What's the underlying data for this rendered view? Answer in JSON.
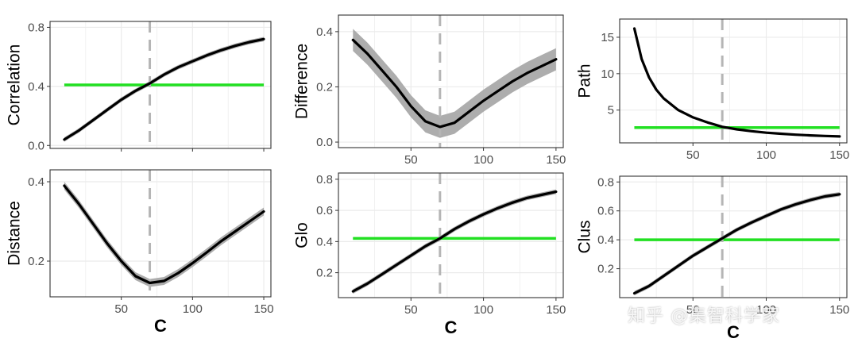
{
  "watermark": "知乎 @集智科学家",
  "colors": {
    "curve": "#000000",
    "band": "#a9a9a9",
    "reference": "#22e022",
    "cutoff": "#b5b5b5",
    "grid": "#ebebeb",
    "border": "#333333"
  },
  "chart_data": [
    {
      "type": "line",
      "ylabel": "Correlation",
      "xlabel": "",
      "xlim": [
        0,
        155
      ],
      "ylim": [
        -0.02,
        0.84
      ],
      "xticks": [],
      "xgrid": [
        50,
        100,
        150
      ],
      "yticks": [
        {
          "value": 0.0,
          "label": "0.0"
        },
        {
          "value": 0.4,
          "label": "0.4"
        },
        {
          "value": 0.8,
          "label": "0.8"
        }
      ],
      "x": [
        10,
        20,
        30,
        40,
        50,
        60,
        70,
        80,
        90,
        100,
        110,
        120,
        130,
        140,
        150
      ],
      "y": [
        0.04,
        0.1,
        0.17,
        0.24,
        0.31,
        0.37,
        0.42,
        0.48,
        0.53,
        0.57,
        0.61,
        0.645,
        0.675,
        0.7,
        0.72
      ],
      "band": 0.015,
      "reference_y": 0.41,
      "cutoff_x": 70
    },
    {
      "type": "line",
      "ylabel": "Difference",
      "xlabel": "",
      "xlim": [
        0,
        155
      ],
      "ylim": [
        -0.02,
        0.46
      ],
      "xticks": [
        {
          "value": 50,
          "label": "50"
        },
        {
          "value": 100,
          "label": "100"
        },
        {
          "value": 150,
          "label": "150"
        }
      ],
      "xgrid": [
        50,
        100,
        150
      ],
      "yticks": [
        {
          "value": 0.0,
          "label": "0.0"
        },
        {
          "value": 0.2,
          "label": "0.2"
        },
        {
          "value": 0.4,
          "label": "0.4"
        }
      ],
      "x": [
        10,
        20,
        30,
        40,
        50,
        60,
        70,
        80,
        90,
        100,
        110,
        120,
        130,
        140,
        150
      ],
      "y": [
        0.37,
        0.32,
        0.26,
        0.2,
        0.13,
        0.075,
        0.055,
        0.07,
        0.11,
        0.15,
        0.185,
        0.22,
        0.25,
        0.275,
        0.3
      ],
      "band": 0.04,
      "reference_y": null,
      "cutoff_x": 70
    },
    {
      "type": "line",
      "ylabel": "Path",
      "xlabel": "",
      "xlim": [
        0,
        155
      ],
      "ylim": [
        0.5,
        17.5
      ],
      "xticks": [
        {
          "value": 50,
          "label": "50"
        },
        {
          "value": 100,
          "label": "100"
        },
        {
          "value": 150,
          "label": "150"
        }
      ],
      "xgrid": [
        50,
        100,
        150
      ],
      "yticks": [
        {
          "value": 5,
          "label": "5"
        },
        {
          "value": 10,
          "label": "10"
        },
        {
          "value": 15,
          "label": "15"
        }
      ],
      "x": [
        10,
        15,
        20,
        25,
        30,
        40,
        50,
        60,
        70,
        80,
        90,
        100,
        110,
        120,
        130,
        140,
        150
      ],
      "y": [
        16.2,
        12.0,
        9.5,
        7.8,
        6.6,
        5.0,
        4.0,
        3.3,
        2.7,
        2.35,
        2.1,
        1.9,
        1.75,
        1.62,
        1.52,
        1.45,
        1.38
      ],
      "band": 0.1,
      "reference_y": 2.6,
      "cutoff_x": 70
    },
    {
      "type": "line",
      "ylabel": "Distance",
      "xlabel": "C",
      "xlim": [
        0,
        155
      ],
      "ylim": [
        0.11,
        0.43
      ],
      "xticks": [
        {
          "value": 50,
          "label": "50"
        },
        {
          "value": 100,
          "label": "100"
        },
        {
          "value": 150,
          "label": "150"
        }
      ],
      "xgrid": [
        50,
        100,
        150
      ],
      "yticks": [
        {
          "value": 0.2,
          "label": "0.2"
        },
        {
          "value": 0.4,
          "label": "0.4"
        }
      ],
      "x": [
        10,
        20,
        30,
        40,
        50,
        60,
        70,
        80,
        90,
        100,
        110,
        120,
        130,
        140,
        150
      ],
      "y": [
        0.39,
        0.345,
        0.295,
        0.245,
        0.2,
        0.162,
        0.145,
        0.15,
        0.17,
        0.195,
        0.222,
        0.25,
        0.275,
        0.3,
        0.325
      ],
      "band": 0.01,
      "reference_y": null,
      "cutoff_x": 70
    },
    {
      "type": "line",
      "ylabel": "Glo",
      "xlabel": "C",
      "xlim": [
        0,
        155
      ],
      "ylim": [
        0.04,
        0.84
      ],
      "xticks": [
        {
          "value": 50,
          "label": "50"
        },
        {
          "value": 100,
          "label": "100"
        },
        {
          "value": 150,
          "label": "150"
        }
      ],
      "xgrid": [
        50,
        100,
        150
      ],
      "yticks": [
        {
          "value": 0.2,
          "label": "0.2"
        },
        {
          "value": 0.4,
          "label": "0.4"
        },
        {
          "value": 0.6,
          "label": "0.6"
        },
        {
          "value": 0.8,
          "label": "0.8"
        }
      ],
      "x": [
        10,
        20,
        30,
        40,
        50,
        60,
        70,
        80,
        90,
        100,
        110,
        120,
        130,
        140,
        150
      ],
      "y": [
        0.08,
        0.13,
        0.19,
        0.25,
        0.31,
        0.37,
        0.42,
        0.48,
        0.53,
        0.575,
        0.615,
        0.65,
        0.68,
        0.7,
        0.72
      ],
      "band": 0.015,
      "reference_y": 0.42,
      "cutoff_x": 70
    },
    {
      "type": "line",
      "ylabel": "Clus",
      "xlabel": "C",
      "xlim": [
        0,
        155
      ],
      "ylim": [
        0.0,
        0.84
      ],
      "xticks": [
        {
          "value": 50,
          "label": "50"
        },
        {
          "value": 100,
          "label": "100"
        },
        {
          "value": 150,
          "label": "150"
        }
      ],
      "xgrid": [
        50,
        100,
        150
      ],
      "yticks": [
        {
          "value": 0.2,
          "label": "0.2"
        },
        {
          "value": 0.4,
          "label": "0.4"
        },
        {
          "value": 0.6,
          "label": "0.6"
        },
        {
          "value": 0.8,
          "label": "0.8"
        }
      ],
      "x": [
        10,
        20,
        30,
        40,
        50,
        60,
        70,
        80,
        90,
        100,
        110,
        120,
        130,
        140,
        150
      ],
      "y": [
        0.03,
        0.08,
        0.15,
        0.22,
        0.29,
        0.35,
        0.41,
        0.47,
        0.52,
        0.565,
        0.61,
        0.645,
        0.675,
        0.7,
        0.715
      ],
      "band": 0.015,
      "reference_y": 0.4,
      "cutoff_x": 70
    }
  ]
}
